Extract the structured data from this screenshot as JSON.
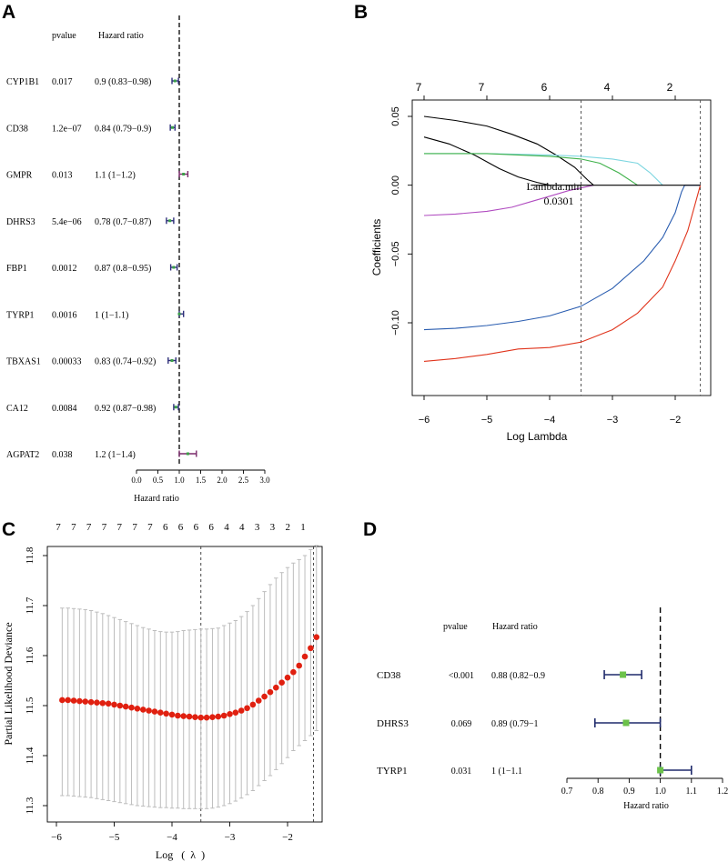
{
  "panels": {
    "A": {
      "label": "A",
      "header_pvalue": "pvalue",
      "header_hr": "Hazard ratio",
      "xlabel": "Hazard ratio",
      "xticks": [
        "0.0",
        "0.5",
        "1.0",
        "1.5",
        "2.0",
        "2.5",
        "3.0"
      ]
    },
    "B": {
      "label": "B",
      "ylabel": "Coefficients",
      "xlabel": "Log Lambda",
      "top_ticks": [
        "7",
        "7",
        "6",
        "4",
        "2"
      ],
      "annot_line1": "Lambda.min",
      "annot_line2": "0.0301",
      "yticks": [
        "0.05",
        "0.00",
        "−0.05",
        "−0.10"
      ],
      "xticks": [
        "−6",
        "−5",
        "−4",
        "−3",
        "−2"
      ]
    },
    "C": {
      "label": "C",
      "ylabel": "Partial Likelihood Deviance",
      "xlabel": "Log   (  λ  )",
      "top_ticks": [
        "7",
        "7",
        "7",
        "7",
        "7",
        "7",
        "7",
        "6",
        "6",
        "6",
        "6",
        "4",
        "4",
        "3",
        "3",
        "2",
        "1"
      ],
      "yticks": [
        "11.3",
        "11.4",
        "11.5",
        "11.6",
        "11.7",
        "11.8"
      ],
      "xticks": [
        "−6",
        "−5",
        "−4",
        "−3",
        "−2"
      ]
    },
    "D": {
      "label": "D",
      "header_pvalue": "pvalue",
      "header_hr": "Hazard ratio",
      "xlabel": "Hazard ratio",
      "xticks": [
        "0.7",
        "0.8",
        "0.9",
        "1.0",
        "1.1",
        "1.2"
      ]
    }
  },
  "colors": {
    "forest_a": "#2e2f7a",
    "forest_a_alt": "#7a2a6a",
    "forest_d_line": "#1f2a6b",
    "forest_d_box": "#6cc24a",
    "dev_points": "#e02010",
    "dev_bars": "#bdbdbd"
  },
  "chart_data": [
    {
      "panel": "A",
      "type": "forest",
      "xlim": [
        0,
        3
      ],
      "reference": 1,
      "rows": [
        {
          "gene": "CYP1B1",
          "pvalue": "0.017",
          "hr_text": "0.9 (0.83−0.98)",
          "hr": 0.9,
          "lo": 0.83,
          "hi": 0.98
        },
        {
          "gene": "CD38",
          "pvalue": "1.2e−07",
          "hr_text": "0.84 (0.79−0.9)",
          "hr": 0.84,
          "lo": 0.79,
          "hi": 0.9
        },
        {
          "gene": "GMPR",
          "pvalue": "0.013",
          "hr_text": "1.1 (1−1.2)",
          "hr": 1.1,
          "lo": 1.0,
          "hi": 1.2
        },
        {
          "gene": "DHRS3",
          "pvalue": "5.4e−06",
          "hr_text": "0.78 (0.7−0.87)",
          "hr": 0.78,
          "lo": 0.7,
          "hi": 0.87
        },
        {
          "gene": "FBP1",
          "pvalue": "0.0012",
          "hr_text": "0.87 (0.8−0.95)",
          "hr": 0.87,
          "lo": 0.8,
          "hi": 0.95
        },
        {
          "gene": "TYRP1",
          "pvalue": "0.0016",
          "hr_text": "1 (1−1.1)",
          "hr": 1.0,
          "lo": 1.0,
          "hi": 1.1
        },
        {
          "gene": "TBXAS1",
          "pvalue": "0.00033",
          "hr_text": "0.83 (0.74−0.92)",
          "hr": 0.83,
          "lo": 0.74,
          "hi": 0.92
        },
        {
          "gene": "CA12",
          "pvalue": "0.0084",
          "hr_text": "0.92 (0.87−0.98)",
          "hr": 0.92,
          "lo": 0.87,
          "hi": 0.98
        },
        {
          "gene": "AGPAT2",
          "pvalue": "0.038",
          "hr_text": "1.2 (1−1.4)",
          "hr": 1.2,
          "lo": 1.0,
          "hi": 1.4
        }
      ]
    },
    {
      "panel": "B",
      "type": "line",
      "title": "",
      "xlabel": "Log Lambda",
      "ylabel": "Coefficients",
      "xlim": [
        -6.1,
        -1.4
      ],
      "ylim": [
        -0.14,
        0.06
      ],
      "vlines": [
        -3.5,
        -1.6
      ],
      "series": [
        {
          "name": "black1",
          "color": "#000000",
          "x": [
            -6.0,
            -5.5,
            -5.0,
            -4.6,
            -4.2,
            -3.9,
            -3.6,
            -3.4,
            -3.3
          ],
          "y": [
            0.05,
            0.047,
            0.043,
            0.037,
            0.03,
            0.022,
            0.013,
            0.004,
            0.0
          ]
        },
        {
          "name": "black2",
          "color": "#000000",
          "x": [
            -6.0,
            -5.6,
            -5.2,
            -4.8,
            -4.5,
            -4.2,
            -4.0
          ],
          "y": [
            0.035,
            0.03,
            0.022,
            0.012,
            0.006,
            0.002,
            0.0
          ]
        },
        {
          "name": "cyan",
          "color": "#7dd6e0",
          "x": [
            -6.0,
            -5.0,
            -4.0,
            -3.5,
            -3.0,
            -2.6,
            -2.4,
            -2.2
          ],
          "y": [
            0.023,
            0.023,
            0.022,
            0.021,
            0.019,
            0.016,
            0.009,
            0.0
          ]
        },
        {
          "name": "green",
          "color": "#3fb14a",
          "x": [
            -6.0,
            -5.0,
            -4.0,
            -3.5,
            -3.2,
            -2.9,
            -2.6
          ],
          "y": [
            0.023,
            0.023,
            0.021,
            0.019,
            0.016,
            0.009,
            0.0
          ]
        },
        {
          "name": "magenta",
          "color": "#b04bc0",
          "x": [
            -6.0,
            -5.5,
            -5.0,
            -4.6,
            -4.3,
            -4.0,
            -3.7,
            -3.5,
            -3.3
          ],
          "y": [
            -0.022,
            -0.021,
            -0.019,
            -0.016,
            -0.012,
            -0.008,
            -0.004,
            -0.002,
            0.0
          ]
        },
        {
          "name": "blue",
          "color": "#2a5db0",
          "x": [
            -6.0,
            -5.5,
            -5.0,
            -4.5,
            -4.0,
            -3.5,
            -3.0,
            -2.5,
            -2.2,
            -2.0,
            -1.9,
            -1.85,
            -1.6
          ],
          "y": [
            -0.105,
            -0.104,
            -0.102,
            -0.099,
            -0.095,
            -0.088,
            -0.075,
            -0.055,
            -0.038,
            -0.02,
            -0.005,
            0.0,
            0.0
          ]
        },
        {
          "name": "red",
          "color": "#e0341c",
          "x": [
            -6.0,
            -5.5,
            -5.0,
            -4.5,
            -4.0,
            -3.5,
            -3.0,
            -2.6,
            -2.2,
            -2.0,
            -1.8,
            -1.6
          ],
          "y": [
            -0.128,
            -0.126,
            -0.123,
            -0.119,
            -0.118,
            -0.114,
            -0.105,
            -0.093,
            -0.074,
            -0.055,
            -0.033,
            0.0
          ]
        },
        {
          "name": "flat",
          "color": "#000000",
          "x": [
            -4.3,
            -1.6
          ],
          "y": [
            0.0,
            0.0
          ]
        }
      ]
    },
    {
      "panel": "C",
      "type": "scatter",
      "title": "",
      "xlabel": "Log (λ)",
      "ylabel": "Partial Likelihood Deviance",
      "xlim": [
        -6.05,
        -1.45
      ],
      "ylim": [
        11.28,
        11.83
      ],
      "vlines": [
        -3.5,
        -1.55
      ],
      "x": [
        -5.9,
        -5.8,
        -5.7,
        -5.6,
        -5.5,
        -5.4,
        -5.3,
        -5.2,
        -5.1,
        -5.0,
        -4.9,
        -4.8,
        -4.7,
        -4.6,
        -4.5,
        -4.4,
        -4.3,
        -4.2,
        -4.1,
        -4.0,
        -3.9,
        -3.8,
        -3.7,
        -3.6,
        -3.5,
        -3.4,
        -3.3,
        -3.2,
        -3.1,
        -3.0,
        -2.9,
        -2.8,
        -2.7,
        -2.6,
        -2.5,
        -2.4,
        -2.3,
        -2.2,
        -2.1,
        -2.0,
        -1.9,
        -1.8,
        -1.7,
        -1.6,
        -1.5
      ],
      "y": [
        11.511,
        11.511,
        11.51,
        11.509,
        11.508,
        11.507,
        11.506,
        11.505,
        11.504,
        11.502,
        11.5,
        11.498,
        11.496,
        11.494,
        11.492,
        11.49,
        11.488,
        11.486,
        11.484,
        11.482,
        11.48,
        11.479,
        11.478,
        11.477,
        11.476,
        11.476,
        11.477,
        11.478,
        11.48,
        11.483,
        11.486,
        11.49,
        11.495,
        11.502,
        11.51,
        11.518,
        11.527,
        11.536,
        11.546,
        11.556,
        11.567,
        11.58,
        11.598,
        11.615,
        11.637
      ],
      "err_lo": [
        11.32,
        11.32,
        11.319,
        11.318,
        11.317,
        11.316,
        11.314,
        11.312,
        11.31,
        11.308,
        11.306,
        11.304,
        11.302,
        11.3,
        11.299,
        11.298,
        11.297,
        11.296,
        11.296,
        11.295,
        11.295,
        11.294,
        11.294,
        11.294,
        11.294,
        11.294,
        11.295,
        11.297,
        11.3,
        11.304,
        11.309,
        11.315,
        11.322,
        11.33,
        11.34,
        11.35,
        11.36,
        11.372,
        11.384,
        11.396,
        11.41,
        11.42,
        11.43,
        11.44,
        11.45
      ],
      "err_hi": [
        11.695,
        11.695,
        11.694,
        11.693,
        11.692,
        11.69,
        11.687,
        11.684,
        11.68,
        11.676,
        11.672,
        11.668,
        11.664,
        11.66,
        11.656,
        11.653,
        11.65,
        11.648,
        11.647,
        11.647,
        11.648,
        11.65,
        11.651,
        11.652,
        11.653,
        11.653,
        11.654,
        11.655,
        11.66,
        11.665,
        11.67,
        11.678,
        11.688,
        11.7,
        11.714,
        11.728,
        11.742,
        11.755,
        11.766,
        11.776,
        11.785,
        11.792,
        11.8,
        11.812,
        11.82
      ]
    },
    {
      "panel": "D",
      "type": "forest",
      "xlim": [
        0.7,
        1.2
      ],
      "reference": 1,
      "rows": [
        {
          "gene": "CD38",
          "pvalue": "<0.001",
          "hr_text": "0.88 (0.82−0.9",
          "hr": 0.88,
          "lo": 0.82,
          "hi": 0.94
        },
        {
          "gene": "DHRS3",
          "pvalue": "0.069",
          "hr_text": "0.89 (0.79−1",
          "hr": 0.89,
          "lo": 0.79,
          "hi": 1.0
        },
        {
          "gene": "TYRP1",
          "pvalue": "0.031",
          "hr_text": "1 (1−1.1",
          "hr": 1.0,
          "lo": 1.0,
          "hi": 1.1
        }
      ]
    }
  ]
}
